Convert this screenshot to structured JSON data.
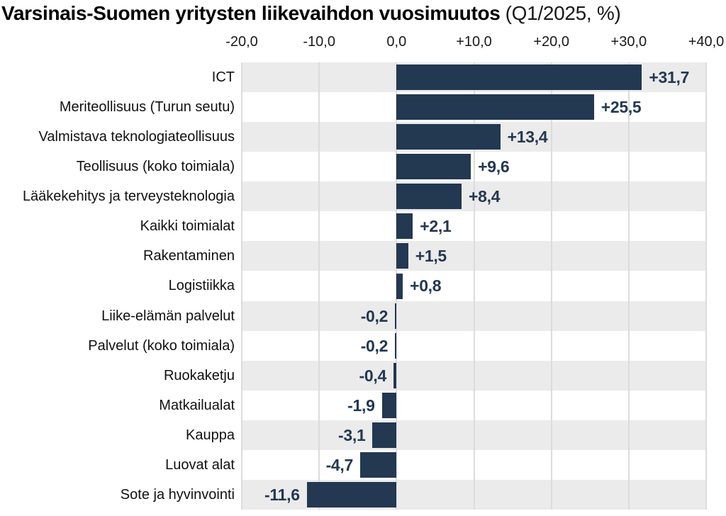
{
  "chart_data": {
    "type": "bar",
    "orientation": "horizontal",
    "title": "Varsinais-Suomen yritysten liikevaihdon vuosimuutos",
    "subtitle": "(Q1/2025, %)",
    "categories": [
      "ICT",
      "Meriteollisuus (Turun seutu)",
      "Valmistava teknologiateollisuus",
      "Teollisuus (koko toimiala)",
      "Lääkekehitys ja terveysteknologia",
      "Kaikki toimialat",
      "Rakentaminen",
      "Logistiikka",
      "Liike-elämän palvelut",
      "Palvelut (koko toimiala)",
      "Ruokaketju",
      "Matkailualat",
      "Kauppa",
      "Luovat alat",
      "Sote ja hyvinvointi"
    ],
    "values": [
      31.7,
      25.5,
      13.4,
      9.6,
      8.4,
      2.1,
      1.5,
      0.8,
      -0.2,
      -0.2,
      -0.4,
      -1.9,
      -3.1,
      -4.7,
      -11.6
    ],
    "value_labels": [
      "+31,7",
      "+25,5",
      "+13,4",
      "+9,6",
      "+8,4",
      "+2,1",
      "+1,5",
      "+0,8",
      "-0,2",
      "-0,2",
      "-0,4",
      "-1,9",
      "-3,1",
      "-4,7",
      "-11,6"
    ],
    "xlim": [
      -20,
      40
    ],
    "x_ticks": [
      {
        "value": -20,
        "label": "-20,0"
      },
      {
        "value": -10,
        "label": "-10,0"
      },
      {
        "value": 0,
        "label": "0,0"
      },
      {
        "value": 10,
        "label": "+10,0"
      },
      {
        "value": 20,
        "label": "+20,0"
      },
      {
        "value": 30,
        "label": "+30,0"
      },
      {
        "value": 40,
        "label": "+40,0"
      }
    ],
    "grid": true,
    "legend": "none",
    "decimal_separator": ",",
    "colors": {
      "bar": "#233851",
      "value_label": "#233851",
      "row_alt": "#EBEBEB",
      "row_base": "#FFFFFF",
      "gridline": "#DCDCDC",
      "category_label": "#111111",
      "tick_label": "#1A1A1A",
      "title": "#000000",
      "background": "#FFFFFF"
    }
  }
}
